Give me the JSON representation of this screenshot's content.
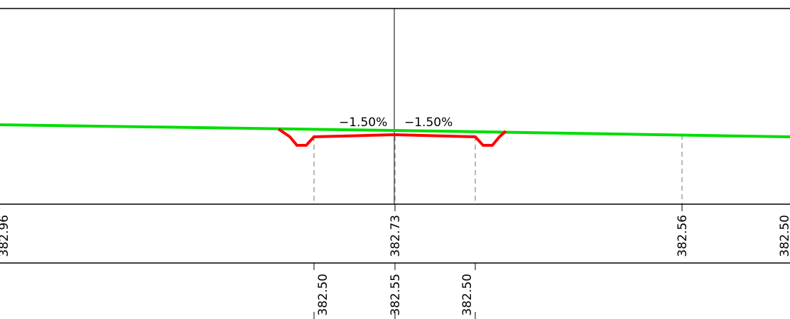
{
  "cross_section": {
    "slopes": {
      "left": "−1.50%",
      "right": "−1.50%"
    },
    "ground_elevations": [
      "382.96",
      "382.73",
      "382.56",
      "382.50"
    ],
    "design_elevations": [
      "382.50",
      "382.55",
      "382.50"
    ]
  },
  "colors": {
    "ground_line": "#00dd00",
    "design_line": "#ff0000",
    "frame": "#000000",
    "leader": "#888888"
  }
}
